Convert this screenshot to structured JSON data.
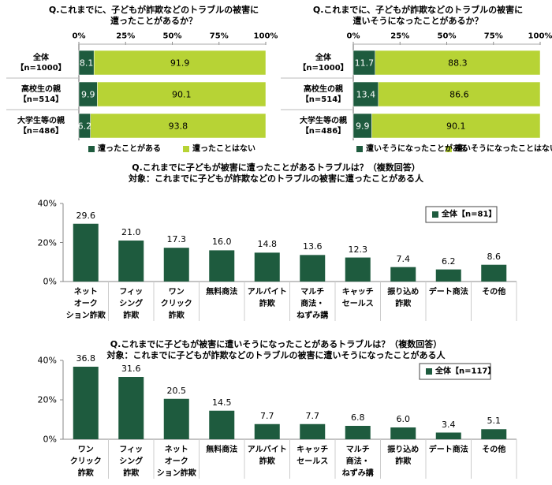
{
  "chart_data": [
    {
      "type": "hbar_stacked",
      "title": [
        "Q.これまでに、子どもが詐欺などのトラブルの被害に",
        "遭ったことがあるか？"
      ],
      "categories": [
        "全体\n【n=1000】",
        "高校生の親\n【n=514】",
        "大学生等の親\n【n=486】"
      ],
      "series": [
        {
          "name": "遭ったことがある",
          "color": "#1e5b3e",
          "values": [
            8.1,
            9.9,
            6.2
          ]
        },
        {
          "name": "遭ったことはない",
          "color": "#b7d335",
          "values": [
            91.9,
            90.1,
            93.8
          ]
        }
      ],
      "xlim": [
        0,
        100
      ],
      "xticks": [
        {
          "value": 0,
          "label": "0%"
        },
        {
          "value": 25,
          "label": "25%"
        },
        {
          "value": 50,
          "label": "50%"
        },
        {
          "value": 75,
          "label": "75%"
        },
        {
          "value": 100,
          "label": "100%"
        }
      ]
    },
    {
      "type": "hbar_stacked",
      "title": [
        "Q.これまでに、子どもが詐欺などのトラブルの被害に",
        "遭いそうになったことがあるか？"
      ],
      "categories": [
        "全体\n【n=1000】",
        "高校生の親\n【n=514】",
        "大学生等の親\n【n=486】"
      ],
      "series": [
        {
          "name": "遭いそうになったことがある",
          "color": "#1e5b3e",
          "values": [
            11.7,
            13.4,
            9.9
          ]
        },
        {
          "name": "遭いそうになったことはない",
          "color": "#b7d335",
          "values": [
            88.3,
            86.6,
            90.1
          ]
        }
      ],
      "xlim": [
        0,
        100
      ],
      "xticks": [
        {
          "value": 0,
          "label": "0%"
        },
        {
          "value": 25,
          "label": "25%"
        },
        {
          "value": 50,
          "label": "50%"
        },
        {
          "value": 75,
          "label": "75%"
        },
        {
          "value": 100,
          "label": "100%"
        }
      ]
    },
    {
      "type": "bar",
      "title": "Q.これまでに子どもが被害に遭ったことがあるトラブルは？（複数回答）",
      "subtitle": "対象：これまでに子どもが詐欺などのトラブルの被害に遭ったことがある人",
      "categories": [
        "ネット\nオーク\nション詐欺",
        "フィッ\nシング\n詐欺",
        "ワン\nクリック\n詐欺",
        "無料商法",
        "アルバイト\n詐欺",
        "マルチ\n商法・\nねずみ講",
        "キャッチ\nセールス",
        "振り込め\n詐欺",
        "デート商法",
        "その他"
      ],
      "series": [
        {
          "name": "全体【n=81】",
          "color": "#1e5b3e",
          "values": [
            29.6,
            21.0,
            17.3,
            16.0,
            14.8,
            13.6,
            12.3,
            7.4,
            6.2,
            8.6
          ],
          "value_labels": [
            "29.6",
            "21.0",
            "17.3",
            "16.0",
            "14.8",
            "13.6",
            "12.3",
            "7.4",
            "6.2",
            "8.6"
          ]
        }
      ],
      "ylim": [
        0,
        40
      ],
      "yticks": [
        {
          "value": 0,
          "label": "0%"
        },
        {
          "value": 20,
          "label": "20%"
        },
        {
          "value": 40,
          "label": "40%"
        }
      ]
    },
    {
      "type": "bar",
      "title": "Q.これまでに子どもが被害に遭いそうになったことがあるトラブルは？（複数回答）",
      "subtitle": "対象：これまでに子どもが詐欺などのトラブルの被害に遭いそうになったことがある人",
      "categories": [
        "ワン\nクリック\n詐欺",
        "フィッ\nシング\n詐欺",
        "ネット\nオーク\nション詐欺",
        "無料商法",
        "アルバイト\n詐欺",
        "キャッチ\nセールス",
        "マルチ\n商法・\nねずみ講",
        "振り込め\n詐欺",
        "デート商法",
        "その他"
      ],
      "series": [
        {
          "name": "全体【n=117】",
          "color": "#1e5b3e",
          "values": [
            36.8,
            31.6,
            20.5,
            14.5,
            7.7,
            7.7,
            6.8,
            6.0,
            3.4,
            5.1
          ],
          "value_labels": [
            "36.8",
            "31.6",
            "20.5",
            "14.5",
            "7.7",
            "7.7",
            "6.8",
            "6.0",
            "3.4",
            "5.1"
          ]
        }
      ],
      "ylim": [
        0,
        40
      ],
      "yticks": [
        {
          "value": 0,
          "label": "0%"
        },
        {
          "value": 20,
          "label": "20%"
        },
        {
          "value": 40,
          "label": "40%"
        }
      ]
    }
  ]
}
